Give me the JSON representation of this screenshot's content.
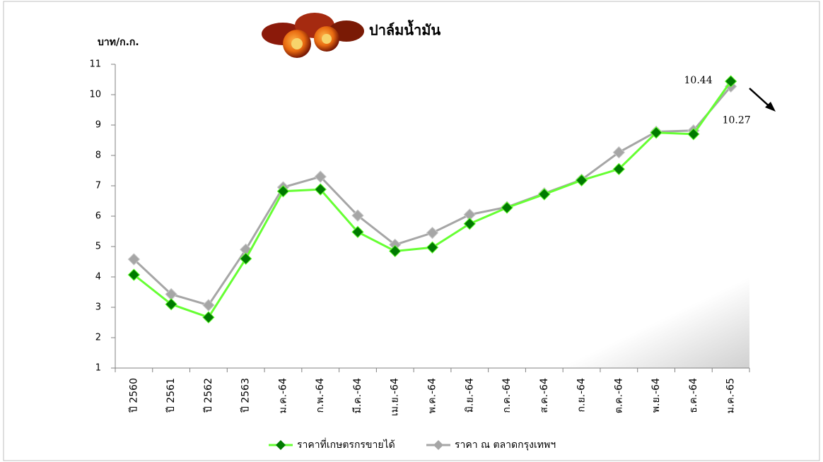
{
  "chart_data": {
    "type": "line",
    "title": "ปาล์มน้ำมัน",
    "y_label": "บาท/ก.ก.",
    "categories": [
      "ปี 2560",
      "ปี 2561",
      "ปี 2562",
      "ปี 2563",
      "ม.ค.-64",
      "ก.พ.-64",
      "มี.ค.-64",
      "เม.ย.-64",
      "พ.ค.-64",
      "มิ.ย.-64",
      "ก.ค.-64",
      "ส.ค.-64",
      "ก.ย.-64",
      "ต.ค.-64",
      "พ.ย.-64",
      "ธ.ค.-64",
      "ม.ค.-65"
    ],
    "series": [
      {
        "name": "ราคาที่เกษตรกรขายได้",
        "color": "#66ff33",
        "marker_color": "#007a00",
        "values": [
          4.07,
          3.1,
          2.67,
          4.6,
          6.82,
          6.88,
          5.48,
          4.85,
          4.97,
          5.75,
          6.28,
          6.72,
          7.18,
          7.55,
          8.75,
          8.7,
          10.44
        ]
      },
      {
        "name": "ราคา ณ ตลาดกรุงเทพฯ",
        "color": "#a6a6a6",
        "marker_color": "#a6a6a6",
        "values": [
          4.58,
          3.43,
          3.07,
          4.9,
          6.95,
          7.3,
          6.02,
          5.06,
          5.45,
          6.05,
          6.3,
          6.75,
          7.2,
          8.1,
          8.78,
          8.82,
          10.27
        ]
      }
    ],
    "ylim": [
      1,
      11
    ],
    "yticks": [
      1,
      2,
      3,
      4,
      5,
      6,
      7,
      8,
      9,
      10,
      11
    ],
    "grid": false,
    "legend": "bottom"
  }
}
